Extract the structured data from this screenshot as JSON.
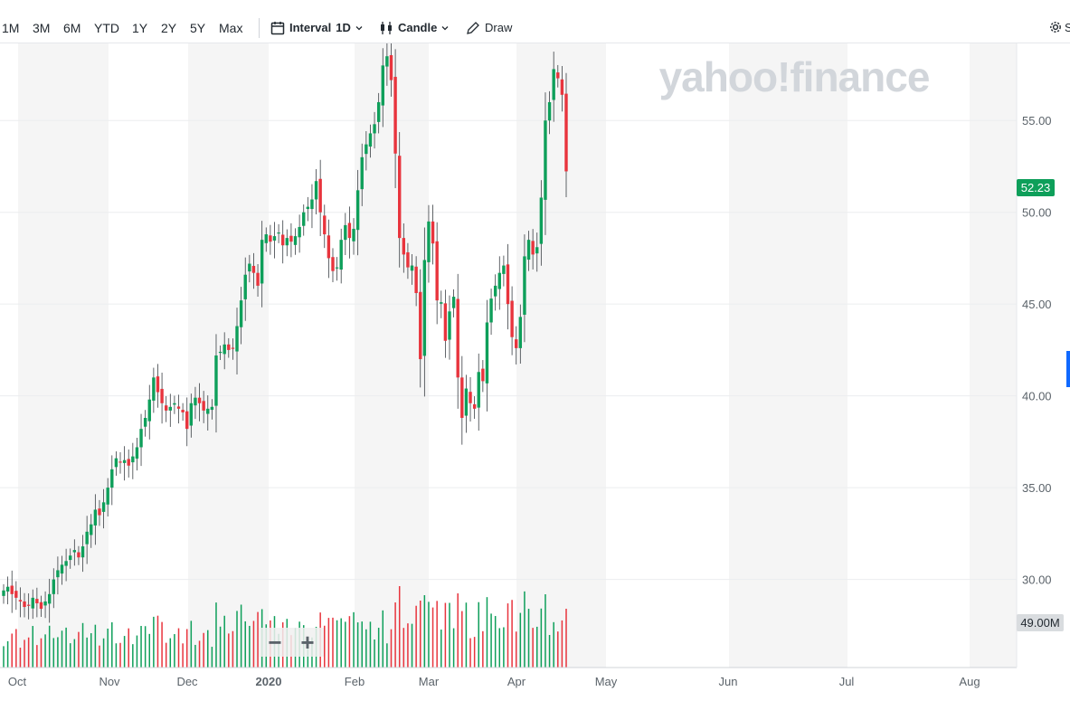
{
  "toolbar": {
    "ranges": [
      "1M",
      "3M",
      "6M",
      "YTD",
      "1Y",
      "2Y",
      "5Y",
      "Max"
    ],
    "interval_label": "Interval",
    "interval_value": "1D",
    "chart_type": "Candle",
    "draw_label": "Draw",
    "settings_label": "S"
  },
  "watermark": "yahoo!finance",
  "last_price_label": "52.23",
  "volume_label": "49.00M",
  "zoom": {
    "minus": "−",
    "plus": "+"
  },
  "colors": {
    "up": "#0e9f5a",
    "down": "#e8343d",
    "accent": "#0f69ff",
    "shade": "#f5f5f5"
  },
  "chart_data": {
    "type": "candlestick",
    "interval": "1D",
    "y_axis": {
      "ticks": [
        "30.00",
        "35.00",
        "40.00",
        "45.00",
        "50.00",
        "55.00"
      ],
      "range": [
        25.2,
        59.2
      ]
    },
    "x_axis": {
      "ticks": [
        "Oct",
        "Nov",
        "Dec",
        "2020",
        "Feb",
        "Mar",
        "Apr",
        "May",
        "Jun",
        "Jul",
        "Aug"
      ]
    },
    "last_close": 52.23,
    "last_volume": "49.00M",
    "closes": [
      29.4,
      29.6,
      29.2,
      29.0,
      28.8,
      28.5,
      28.6,
      29.0,
      28.7,
      28.4,
      28.8,
      29.2,
      30.0,
      30.5,
      30.8,
      31.0,
      31.3,
      31.6,
      31.2,
      31.8,
      32.6,
      33.0,
      33.8,
      33.5,
      34.2,
      35.0,
      36.0,
      36.6,
      36.4,
      36.5,
      36.2,
      36.7,
      37.2,
      38.2,
      38.8,
      39.8,
      41.0,
      40.2,
      39.6,
      39.2,
      39.4,
      39.6,
      39.3,
      39.1,
      38.2,
      39.6,
      39.9,
      39.6,
      39.2,
      39.3,
      39.4,
      42.2,
      42.4,
      42.8,
      42.5,
      42.6,
      43.8,
      45.2,
      46.6,
      47.2,
      46.7,
      46.0,
      48.5,
      48.8,
      48.4,
      48.7,
      48.9,
      48.2,
      48.6,
      48.4,
      48.7,
      49.2,
      50.0,
      50.3,
      50.7,
      51.7,
      50.0,
      48.8,
      47.5,
      46.8,
      47.0,
      48.5,
      49.3,
      48.6,
      49.1,
      51.2,
      53.0,
      53.7,
      54.3,
      54.8,
      56.0,
      58.0,
      58.5,
      57.2,
      53.2,
      48.6,
      47.7,
      47.0,
      47.1,
      45.6,
      42.0,
      47.4,
      49.5,
      48.3,
      45.2,
      45.1,
      43.0,
      44.6,
      45.4,
      41.0,
      38.8,
      40.4,
      39.6,
      39.3,
      41.3,
      40.8,
      44.0,
      45.3,
      46.0,
      46.7,
      47.1,
      45.0,
      43.2,
      42.6,
      44.3,
      47.6,
      48.5,
      47.7,
      48.1,
      50.8,
      55.0,
      56.0,
      57.8,
      57.3,
      56.4,
      52.23
    ]
  }
}
